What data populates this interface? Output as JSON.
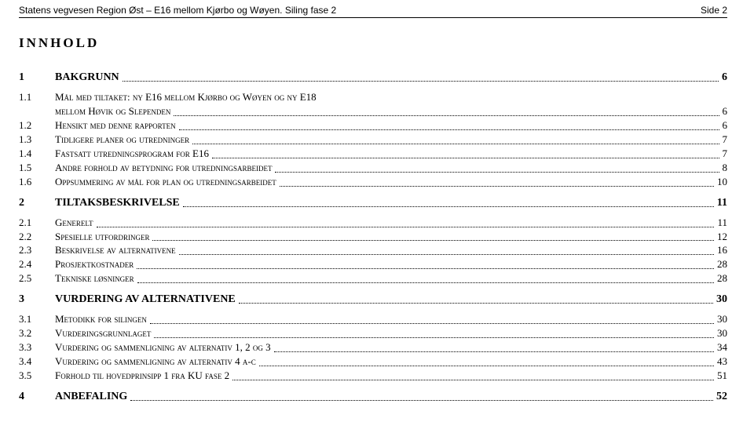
{
  "header": {
    "left": "Statens vegvesen Region Øst – E16 mellom Kjørbo og Wøyen. Siling fase 2",
    "right": "Side 2"
  },
  "title": "INNHOLD",
  "toc": [
    {
      "num": "1",
      "label": "BAKGRUNN",
      "page": "6",
      "children": [
        {
          "num": "1.1",
          "label": "Mål med tiltaket: ny E16 mellom Kjørbo og Wøyen og ny E18 mellom Høvik og Slependen",
          "page": "6",
          "wrap": true
        },
        {
          "num": "1.2",
          "label": "Hensikt med denne rapporten",
          "page": "6"
        },
        {
          "num": "1.3",
          "label": "Tidligere planer og utredninger",
          "page": "7"
        },
        {
          "num": "1.4",
          "label": "Fastsatt utredningsprogram for E16",
          "page": "7"
        },
        {
          "num": "1.5",
          "label": "Andre forhold av betydning for utredningsarbeidet",
          "page": "8"
        },
        {
          "num": "1.6",
          "label": "Oppsummering av mål for plan og utredningsarbeidet",
          "page": "10"
        }
      ]
    },
    {
      "num": "2",
      "label": "TILTAKSBESKRIVELSE",
      "page": "11",
      "children": [
        {
          "num": "2.1",
          "label": "Generelt",
          "page": "11"
        },
        {
          "num": "2.2",
          "label": "Spesielle utfordringer",
          "page": "12"
        },
        {
          "num": "2.3",
          "label": "Beskrivelse av alternativene",
          "page": "16"
        },
        {
          "num": "2.4",
          "label": "Prosjektkostnader",
          "page": "28"
        },
        {
          "num": "2.5",
          "label": "Tekniske løsninger",
          "page": "28"
        }
      ]
    },
    {
      "num": "3",
      "label": "VURDERING AV ALTERNATIVENE",
      "page": "30",
      "children": [
        {
          "num": "3.1",
          "label": "Metodikk for silingen",
          "page": "30"
        },
        {
          "num": "3.2",
          "label": "Vurderingsgrunnlaget",
          "page": "30"
        },
        {
          "num": "3.3",
          "label": "Vurdering og sammenligning av alternativ 1, 2 og 3",
          "page": "34"
        },
        {
          "num": "3.4",
          "label": "Vurdering og sammenligning av alternativ 4 a-c",
          "page": "43"
        },
        {
          "num": "3.5",
          "label": "Forhold til hovedprinsipp 1 fra KU fase 2",
          "page": "51"
        }
      ]
    },
    {
      "num": "4",
      "label": "ANBEFALING",
      "page": "52",
      "children": []
    }
  ]
}
